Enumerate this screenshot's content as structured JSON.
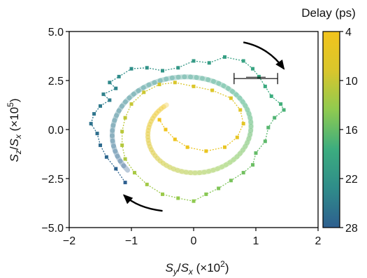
{
  "chart_data": {
    "type": "scatter",
    "xlabel_parts": {
      "main": "S",
      "sub1": "y",
      "slash": "/",
      "sub2_main": "S",
      "sub2": "x",
      "scale_open": " (×10",
      "exp": "2",
      "scale_close": ")"
    },
    "ylabel_parts": {
      "main": "S",
      "sub1": "z",
      "slash": "/",
      "sub2_main": "S",
      "sub2": "x",
      "scale_open": " (×10",
      "exp": "5",
      "scale_close": ")"
    },
    "xlim": [
      -2,
      2
    ],
    "ylim": [
      -5,
      5
    ],
    "x_ticks": [
      -2,
      -1,
      0,
      1,
      2
    ],
    "x_tick_labels": [
      "−2",
      "−1",
      "0",
      "1",
      "2"
    ],
    "y_ticks": [
      -5,
      -2.5,
      0,
      2.5,
      5
    ],
    "y_tick_labels": [
      "−5.0",
      "−2.5",
      "0.0",
      "2.5",
      "5.0"
    ],
    "colorbar": {
      "label": "Delay (ps)",
      "range": [
        4,
        28
      ],
      "ticks": [
        4,
        10,
        16,
        22,
        28
      ],
      "tick_labels": [
        "4",
        "10",
        "16",
        "22",
        "28"
      ],
      "colormap": [
        "#2e5f8f",
        "#2f8c8a",
        "#3cad7f",
        "#8fca50",
        "#d9c62c",
        "#f2c41c"
      ]
    },
    "error_bar": {
      "x": 1.0,
      "y": 2.6,
      "xerr": 0.35
    },
    "guide_spiral_width": 7,
    "arrows": [
      {
        "direction": "clockwise",
        "position": "top-right"
      },
      {
        "direction": "clockwise",
        "position": "bottom-left"
      }
    ],
    "series": [
      {
        "points": [
          {
            "delay": 4.0,
            "x": -1.1,
            "y": -2.7
          },
          {
            "delay": 4.4,
            "x": -1.25,
            "y": -2.0
          },
          {
            "delay": 4.8,
            "x": -1.4,
            "y": -1.4
          },
          {
            "delay": 5.2,
            "x": -1.5,
            "y": -0.8
          },
          {
            "delay": 5.6,
            "x": -1.55,
            "y": -0.2
          },
          {
            "delay": 6.0,
            "x": -1.65,
            "y": 0.3
          },
          {
            "delay": 6.4,
            "x": -1.6,
            "y": 0.8
          },
          {
            "delay": 6.8,
            "x": -1.5,
            "y": 1.2
          },
          {
            "delay": 7.2,
            "x": -1.35,
            "y": 1.5
          },
          {
            "delay": 7.6,
            "x": -1.45,
            "y": 1.8
          },
          {
            "delay": 8.0,
            "x": -1.25,
            "y": 2.1
          },
          {
            "delay": 8.4,
            "x": -1.35,
            "y": 2.4
          },
          {
            "delay": 8.8,
            "x": -1.2,
            "y": 2.7
          },
          {
            "delay": 9.2,
            "x": -1.0,
            "y": 3.1
          },
          {
            "delay": 9.6,
            "x": -0.75,
            "y": 3.15
          },
          {
            "delay": 10.0,
            "x": -0.5,
            "y": 3.0
          },
          {
            "delay": 10.4,
            "x": -0.25,
            "y": 3.15
          },
          {
            "delay": 10.8,
            "x": 0.0,
            "y": 3.5
          },
          {
            "delay": 11.2,
            "x": 0.25,
            "y": 3.4
          },
          {
            "delay": 11.6,
            "x": 0.5,
            "y": 3.7
          },
          {
            "delay": 12.0,
            "x": 0.8,
            "y": 3.5
          },
          {
            "delay": 12.4,
            "x": 0.95,
            "y": 3.1
          },
          {
            "delay": 12.8,
            "x": 1.05,
            "y": 2.7
          },
          {
            "delay": 13.2,
            "x": 1.15,
            "y": 2.2
          },
          {
            "delay": 13.6,
            "x": 1.25,
            "y": 1.7
          },
          {
            "delay": 14.0,
            "x": 1.4,
            "y": 1.3
          },
          {
            "delay": 14.4,
            "x": 1.45,
            "y": 1.0
          },
          {
            "delay": 14.8,
            "x": 1.3,
            "y": 0.6
          },
          {
            "delay": 15.2,
            "x": 1.2,
            "y": 0.1
          },
          {
            "delay": 15.6,
            "x": 1.15,
            "y": -0.6
          },
          {
            "delay": 16.0,
            "x": 1.0,
            "y": -1.2
          },
          {
            "delay": 16.4,
            "x": 0.95,
            "y": -1.8
          },
          {
            "delay": 16.8,
            "x": 0.8,
            "y": -2.2
          },
          {
            "delay": 17.2,
            "x": 0.6,
            "y": -2.6
          },
          {
            "delay": 17.6,
            "x": 0.4,
            "y": -3.0
          },
          {
            "delay": 18.0,
            "x": 0.2,
            "y": -3.3
          },
          {
            "delay": 18.4,
            "x": 0.0,
            "y": -3.65
          },
          {
            "delay": 18.8,
            "x": -0.25,
            "y": -3.5
          },
          {
            "delay": 19.2,
            "x": -0.5,
            "y": -3.3
          },
          {
            "delay": 19.6,
            "x": -0.75,
            "y": -2.8
          },
          {
            "delay": 20.0,
            "x": -0.95,
            "y": -2.2
          },
          {
            "delay": 20.4,
            "x": -1.1,
            "y": -1.5
          },
          {
            "delay": 20.8,
            "x": -1.15,
            "y": -0.8
          },
          {
            "delay": 21.2,
            "x": -1.15,
            "y": -0.1
          },
          {
            "delay": 21.6,
            "x": -1.1,
            "y": 0.6
          },
          {
            "delay": 22.0,
            "x": -1.0,
            "y": 1.3
          },
          {
            "delay": 22.4,
            "x": -0.8,
            "y": 1.9
          },
          {
            "delay": 22.8,
            "x": -0.55,
            "y": 2.3
          },
          {
            "delay": 23.2,
            "x": -0.3,
            "y": 2.4
          },
          {
            "delay": 23.6,
            "x": 0.0,
            "y": 2.2
          },
          {
            "delay": 24.0,
            "x": 0.3,
            "y": 2.0
          },
          {
            "delay": 24.4,
            "x": 0.6,
            "y": 1.6
          },
          {
            "delay": 24.8,
            "x": 0.75,
            "y": 1.0
          },
          {
            "delay": 25.2,
            "x": 0.8,
            "y": 0.3
          },
          {
            "delay": 25.6,
            "x": 0.7,
            "y": -0.4
          },
          {
            "delay": 26.0,
            "x": 0.5,
            "y": -0.9
          },
          {
            "delay": 26.4,
            "x": 0.2,
            "y": -1.1
          },
          {
            "delay": 26.8,
            "x": -0.1,
            "y": -0.9
          },
          {
            "delay": 27.2,
            "x": -0.3,
            "y": -0.5
          },
          {
            "delay": 27.6,
            "x": -0.45,
            "y": 0.0
          },
          {
            "delay": 28.0,
            "x": -0.55,
            "y": 0.5
          }
        ]
      }
    ]
  }
}
